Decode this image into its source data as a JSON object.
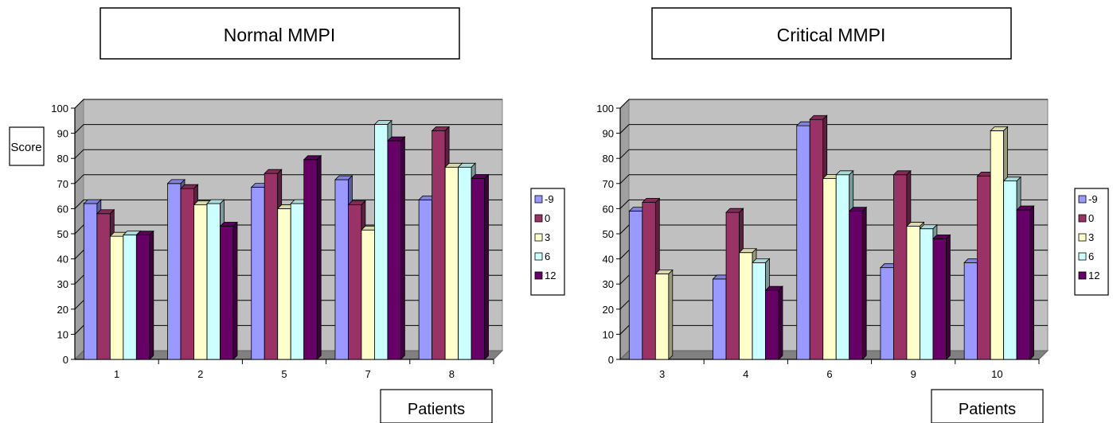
{
  "chart_data": [
    {
      "type": "bar",
      "title": "Normal MMPI",
      "ylabel": "Score",
      "xlabel": "Patients",
      "categories": [
        "1",
        "2",
        "5",
        "7",
        "8"
      ],
      "ylim": [
        0,
        100
      ],
      "yticks": [
        "0",
        "10",
        "20",
        "30",
        "40",
        "50",
        "60",
        "70",
        "80",
        "90",
        "100"
      ],
      "grid": true,
      "legend_position": "right",
      "series": [
        {
          "name": "-9",
          "values": [
            62,
            70,
            68.5,
            71.5,
            63.5
          ]
        },
        {
          "name": "0",
          "values": [
            58,
            68,
            74,
            61.5,
            91
          ]
        },
        {
          "name": "3",
          "values": [
            49,
            61.5,
            60,
            51.5,
            76.5
          ]
        },
        {
          "name": "6",
          "values": [
            49.5,
            62,
            62,
            93.5,
            76.5
          ]
        },
        {
          "name": "12",
          "values": [
            49.5,
            53,
            79.5,
            87,
            72
          ]
        }
      ]
    },
    {
      "type": "bar",
      "title": "Critical MMPI",
      "ylabel": "",
      "xlabel": "Patients",
      "categories": [
        "3",
        "4",
        "6",
        "9",
        "10"
      ],
      "ylim": [
        0,
        100
      ],
      "yticks": [
        "0",
        "10",
        "20",
        "30",
        "40",
        "50",
        "60",
        "70",
        "80",
        "90",
        "100"
      ],
      "grid": true,
      "legend_position": "right",
      "series": [
        {
          "name": "-9",
          "values": [
            59,
            32,
            93,
            36.5,
            38.5
          ]
        },
        {
          "name": "0",
          "values": [
            62.5,
            58.5,
            95.5,
            73.5,
            73
          ]
        },
        {
          "name": "3",
          "values": [
            34,
            42.5,
            72,
            53,
            91
          ]
        },
        {
          "name": "6",
          "values": [
            null,
            38.5,
            73.5,
            52,
            71
          ]
        },
        {
          "name": "12",
          "values": [
            null,
            27.5,
            59,
            48,
            59.5
          ]
        }
      ]
    }
  ],
  "colors": {
    "series": [
      "#9999ff",
      "#993366",
      "#ffffcc",
      "#ccffff",
      "#660066"
    ],
    "plot_back": "#c0c0c0",
    "plot_floor": "#808080"
  }
}
